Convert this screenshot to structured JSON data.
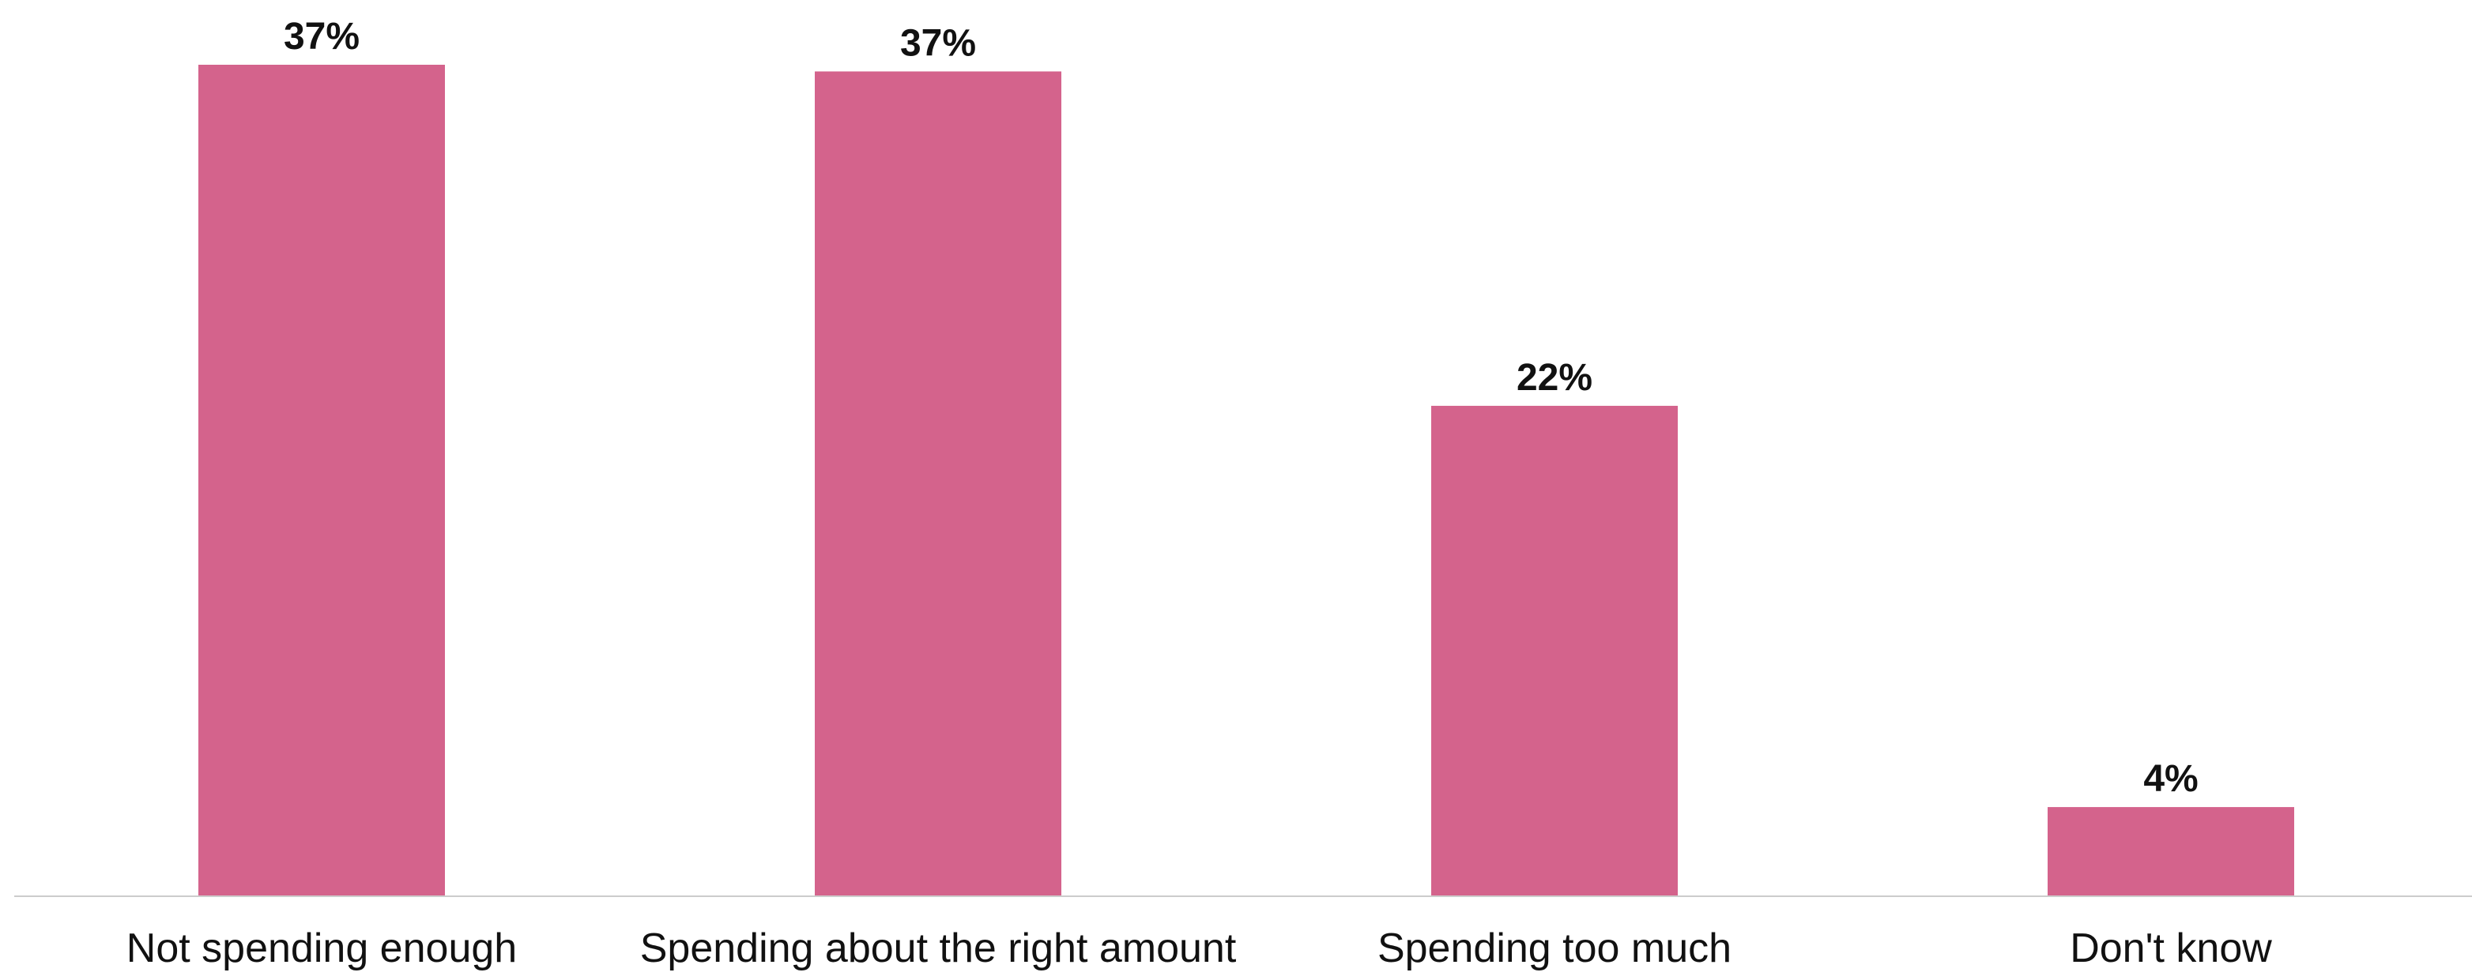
{
  "chart_data": {
    "type": "bar",
    "categories": [
      "Not spending enough",
      "Spending about the right amount",
      "Spending too much",
      "Don't know"
    ],
    "values": [
      37.3,
      37.0,
      22.0,
      4.0
    ],
    "value_labels": [
      "37%",
      "37%",
      "22%",
      "4%"
    ],
    "title": "",
    "xlabel": "",
    "ylabel": "",
    "ylim": [
      0,
      40
    ],
    "grid": false,
    "legend": "none",
    "bar_color": "#d4638c",
    "baseline_color": "#cccccc"
  }
}
